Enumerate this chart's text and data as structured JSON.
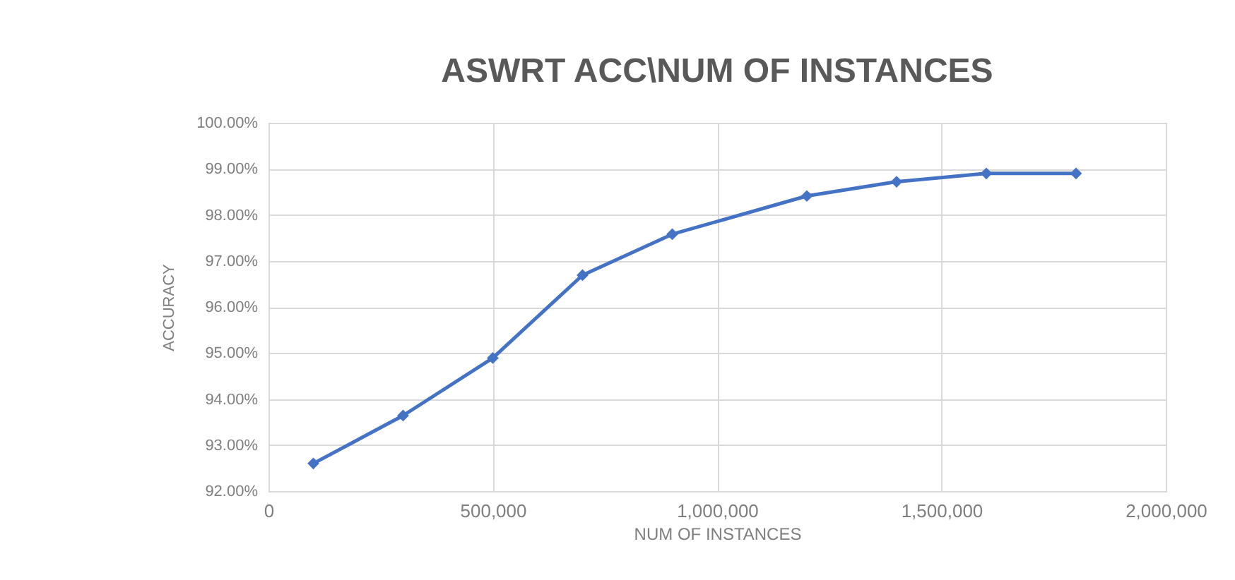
{
  "chart_data": {
    "type": "line",
    "title": "ASWRT ACC\\NUM OF INSTANCES",
    "xlabel": "NUM OF INSTANCES",
    "ylabel": "ACCURACY",
    "x": [
      100000,
      300000,
      500000,
      700000,
      900000,
      1200000,
      1400000,
      1600000,
      1800000
    ],
    "series": [
      {
        "color": "#4472c4",
        "values": [
          92.6,
          93.64,
          94.89,
          96.69,
          97.58,
          98.41,
          98.72,
          98.9,
          98.9
        ]
      }
    ],
    "xlim": [
      0,
      2000000
    ],
    "xticks": [
      {
        "value": 0,
        "label": "0"
      },
      {
        "value": 500000,
        "label": "500,000"
      },
      {
        "value": 1000000,
        "label": "1,000,000"
      },
      {
        "value": 1500000,
        "label": "1,500,000"
      },
      {
        "value": 2000000,
        "label": "2,000,000"
      }
    ],
    "ylim": [
      92,
      100
    ],
    "yticks": [
      {
        "value": 92,
        "label": "92.00%"
      },
      {
        "value": 93,
        "label": "93.00%"
      },
      {
        "value": 94,
        "label": "94.00%"
      },
      {
        "value": 95,
        "label": "95.00%"
      },
      {
        "value": 96,
        "label": "96.00%"
      },
      {
        "value": 97,
        "label": "97.00%"
      },
      {
        "value": 98,
        "label": "98.00%"
      },
      {
        "value": 99,
        "label": "99.00%"
      },
      {
        "value": 100,
        "label": "100.00%"
      }
    ],
    "grid": true,
    "marker": "diamond",
    "line_style": "solid"
  }
}
